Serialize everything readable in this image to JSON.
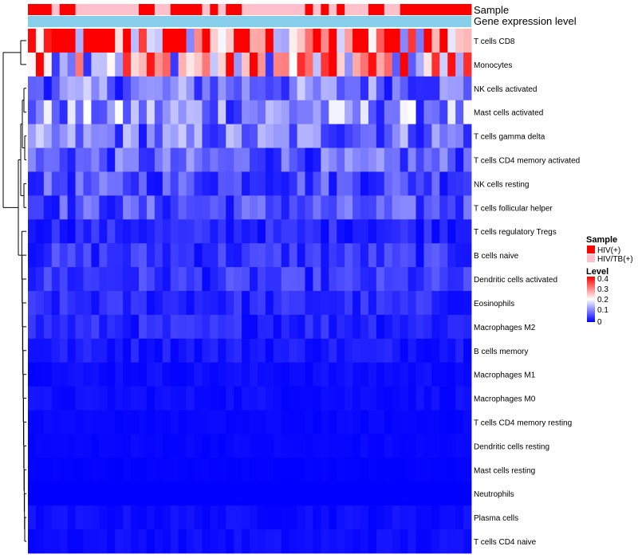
{
  "chart_data": {
    "type": "heatmap",
    "annotation_track_labels": [
      "Sample",
      "Gene expression level"
    ],
    "sample_annotation": [
      "HIV(+)",
      "HIV(+)",
      "HIV(+)",
      "HIV/TB(+)",
      "HIV(+)",
      "HIV(+)",
      "HIV/TB(+)",
      "HIV/TB(+)",
      "HIV/TB(+)",
      "HIV/TB(+)",
      "HIV/TB(+)",
      "HIV/TB(+)",
      "HIV/TB(+)",
      "HIV/TB(+)",
      "HIV(+)",
      "HIV(+)",
      "HIV/TB(+)",
      "HIV/TB(+)",
      "HIV(+)",
      "HIV(+)",
      "HIV(+)",
      "HIV(+)",
      "HIV/TB(+)",
      "HIV(+)",
      "HIV/TB(+)",
      "HIV(+)",
      "HIV(+)",
      "HIV/TB(+)",
      "HIV/TB(+)",
      "HIV/TB(+)",
      "HIV/TB(+)",
      "HIV/TB(+)",
      "HIV/TB(+)",
      "HIV/TB(+)",
      "HIV/TB(+)",
      "HIV(+)",
      "HIV/TB(+)",
      "HIV(+)",
      "HIV/TB(+)",
      "HIV(+)",
      "HIV/TB(+)",
      "HIV/TB(+)",
      "HIV/TB(+)",
      "HIV(+)",
      "HIV(+)",
      "HIV/TB(+)",
      "HIV/TB(+)",
      "HIV(+)",
      "HIV(+)",
      "HIV(+)",
      "HIV(+)",
      "HIV(+)",
      "HIV(+)",
      "HIV(+)",
      "HIV(+)",
      "HIV(+)"
    ],
    "rows": [
      "T cells CD8",
      "Monocytes",
      "NK cells activated",
      "Mast cells activated",
      "T cells gamma delta",
      "T cells CD4 memory activated",
      "NK cells resting",
      "T cells follicular helper",
      "T cells regulatory  Tregs",
      "B cells naive",
      "Dendritic cells activated",
      "Eosinophils",
      "Macrophages M2",
      "B cells memory",
      "Macrophages M1",
      "Macrophages M0",
      "T cells CD4 memory resting",
      "Dendritic cells resting",
      "Mast cells resting",
      "Neutrophils",
      "Plasma cells",
      "T cells CD4 naive"
    ],
    "row_mean_levels": [
      0.31,
      0.24,
      0.09,
      0.11,
      0.09,
      0.07,
      0.06,
      0.06,
      0.03,
      0.04,
      0.04,
      0.03,
      0.03,
      0.02,
      0.01,
      0.01,
      0.005,
      0.005,
      0.002,
      0.0,
      0.01,
      0.01
    ],
    "column_count": 56,
    "color_scale": {
      "min": 0,
      "max": 0.4,
      "low_color": "#0000ff",
      "mid_color": "#ffffff",
      "high_color": "#ff0000"
    },
    "legend": {
      "sample_title": "Sample",
      "sample_entries": [
        {
          "label": "HIV(+)",
          "color": "#ff0000"
        },
        {
          "label": "HIV/TB(+)",
          "color": "#ffc0cb"
        }
      ],
      "level_title": "Level",
      "level_ticks": [
        "0.4",
        "0.3",
        "0.2",
        "0.1",
        "0"
      ]
    },
    "gene_expression_color": "#87ceeb",
    "dendrogram": "row clustering tree on left side"
  }
}
